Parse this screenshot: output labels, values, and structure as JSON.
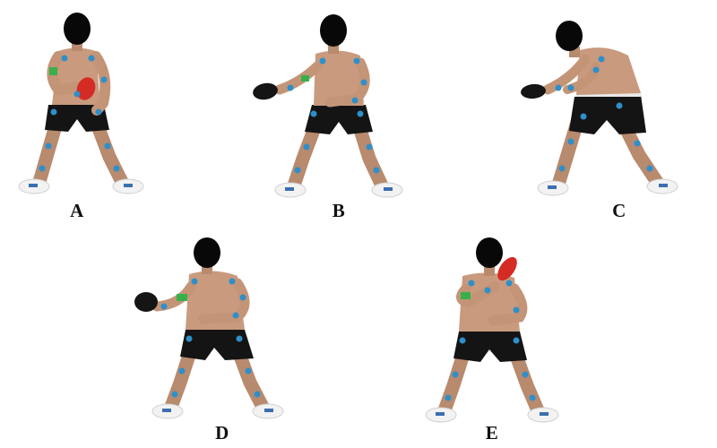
{
  "panels": [
    {
      "label": "A"
    },
    {
      "label": "B"
    },
    {
      "label": "C"
    },
    {
      "label": "D"
    },
    {
      "label": "E"
    }
  ],
  "colors": {
    "skin": "#c99a7e",
    "skin_shadow": "#9e6e54",
    "shorts": "#141414",
    "shoe": "#f2f2f2",
    "shoe_accent": "#3b6fb0",
    "marker": "#2e8fc9",
    "band_green": "#37b04a",
    "paddle_red": "#d42b25",
    "paddle_black": "#151515",
    "head": "#080808"
  }
}
